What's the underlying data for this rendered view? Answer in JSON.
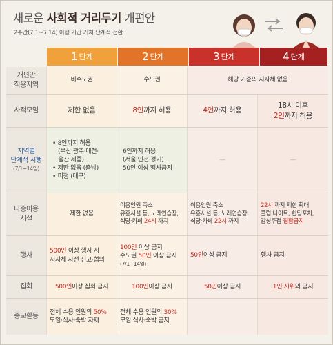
{
  "title": {
    "prefix": "새로운 ",
    "bold": "사회적 거리두기",
    "suffix": " 개편안"
  },
  "subtitle": "2주간(7.1~7.14) 이행 기간 거쳐 단계적 전환",
  "levels": [
    {
      "num": "1",
      "unit": "단계",
      "color": "#f0a13c"
    },
    {
      "num": "2",
      "unit": "단계",
      "color": "#e2742a"
    },
    {
      "num": "3",
      "unit": "단계",
      "color": "#c8322a"
    },
    {
      "num": "4",
      "unit": "단계",
      "color": "#a52020"
    }
  ],
  "rows": {
    "area": {
      "label": [
        "개편안",
        "적용지역"
      ],
      "c1": "비수도권",
      "c2": "수도권",
      "c34": "해당 기준의 지자체 없음"
    },
    "private": {
      "label": "사적모임",
      "c1": "제한 없음",
      "c2a": "8인",
      "c2b": "까지 허용",
      "c3a": "4인",
      "c3b": "까지 허용",
      "c4a": "18시 이후",
      "c4b": "2인",
      "c4c": "까지 허용"
    },
    "regional": {
      "label": [
        "지역별",
        "단계적 시행",
        "(7/1~14일)"
      ],
      "c1": [
        "• 8인까지 허용",
        "(부산·광주·대전·",
        "울산·세종)",
        "• 제한 없음 (충남)",
        "• 미정 (대구)"
      ],
      "c2": [
        "6인까지 허용",
        "(서울·인천·경기)",
        "50인 이상 행사금지"
      ],
      "c3": "—",
      "c4": "—"
    },
    "multi": {
      "label": [
        "다중이용",
        "시설"
      ],
      "c1": "제한 없음",
      "c2": [
        "이용인원 축소",
        "유흥시설 등, 노래연습장,",
        "식당·카페 ",
        "24시",
        " 까지"
      ],
      "c3": [
        "이용인원 축소",
        "유흥시설 등, 노래연습장,",
        "식당·카페 ",
        "22시",
        " 까지"
      ],
      "c4": [
        "22시",
        " 까지 제한 확대",
        "클럽·나이트, 헌팅포차,",
        "감성주점 ",
        "집합금지"
      ]
    },
    "event": {
      "label": "행사",
      "c1": [
        "500인",
        " 이상 행사 시",
        "지자체 사전 신고·협의"
      ],
      "c2": [
        "100인",
        " 이상 금지",
        "수도권 ",
        "50인",
        " 이상 금지",
        "(7/1~14일)"
      ],
      "c3": [
        "50인",
        " 이상 금지"
      ],
      "c4": "행사 금지"
    },
    "rally": {
      "label": "집회",
      "c1": [
        "500인",
        " 이상 집회 금지"
      ],
      "c2": [
        "100인",
        " 이상 금지"
      ],
      "c3": [
        "50인",
        " 이상 금지"
      ],
      "c4": [
        "1인 시위",
        " 외 금지"
      ]
    },
    "religion": {
      "label": "종교활동",
      "c1": [
        "전체 수용 인원의 ",
        "50%",
        "모임·식사·숙박 자제"
      ],
      "c2": [
        "전체 수용 인원의 ",
        "30%",
        "모임·식사·숙박 금지"
      ],
      "c3": "",
      "c4": ""
    }
  }
}
